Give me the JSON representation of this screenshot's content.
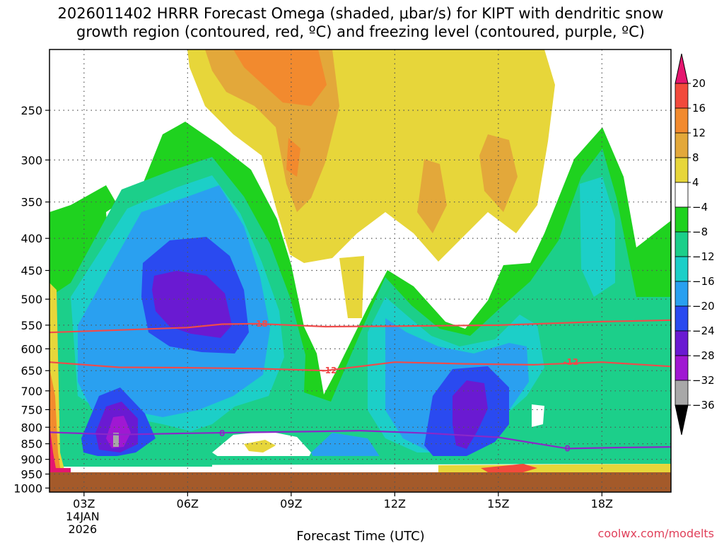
{
  "chart_data": {
    "type": "heatmap",
    "title_line1": "2026011402 HRRR Forecast Omega (shaded, μbar/s) for KIPT with dendritic snow",
    "title_line2": "growth region (contoured, red, ºC) and freezing level (contoured, purple, ºC)",
    "xlabel": "Forecast Time (UTC)",
    "credit": "coolwx.com/modelts",
    "y_axis": {
      "scale": "log-pressure",
      "range_hpa": [
        200,
        1000
      ],
      "ticks": [
        250,
        300,
        350,
        400,
        450,
        500,
        550,
        600,
        650,
        700,
        750,
        800,
        850,
        900,
        950,
        1000
      ],
      "tick_labels": [
        "250",
        "300",
        "350",
        "400",
        "450",
        "500",
        "550",
        "600",
        "650",
        "700",
        "750",
        "800",
        "850",
        "900",
        "950",
        "1000"
      ]
    },
    "x_axis": {
      "range_hours": [
        2,
        20
      ],
      "ticks": [
        {
          "hour": 3,
          "label": "03Z",
          "sub1": "14JAN",
          "sub2": "2026"
        },
        {
          "hour": 6,
          "label": "06Z",
          "sub1": "",
          "sub2": ""
        },
        {
          "hour": 9,
          "label": "09Z",
          "sub1": "",
          "sub2": ""
        },
        {
          "hour": 12,
          "label": "12Z",
          "sub1": "",
          "sub2": ""
        },
        {
          "hour": 15,
          "label": "15Z",
          "sub1": "",
          "sub2": ""
        },
        {
          "hour": 18,
          "label": "18Z",
          "sub1": "",
          "sub2": ""
        }
      ]
    },
    "colorbar": {
      "levels": [
        "20",
        "16",
        "12",
        "8",
        "4",
        "−4",
        "−8",
        "−12",
        "−16",
        "−20",
        "−24",
        "−28",
        "−32",
        "−36"
      ],
      "colors": [
        "#f24a3c",
        "#f28a2e",
        "#e3a83a",
        "#e7d63a",
        "#ffffff",
        "#1fd21f",
        "#1ccf8a",
        "#1ccfc8",
        "#2aa0f0",
        "#2a4af0",
        "#6a1ad2",
        "#a018d2",
        "#a8a8a8",
        "#000000"
      ],
      "top_arrow_color": "#e5166f",
      "bottom_arrow_color": "#000000"
    },
    "contours": [
      {
        "name": "-18C isotherm",
        "label": "-18",
        "color": "#ef4b4b",
        "points": [
          [
            2.0,
            565
          ],
          [
            4.0,
            560
          ],
          [
            6.0,
            555
          ],
          [
            7.0,
            548
          ],
          [
            8.0,
            547
          ],
          [
            10.0,
            553
          ],
          [
            12.0,
            552
          ],
          [
            15.0,
            550
          ],
          [
            18.0,
            543
          ],
          [
            20.0,
            540
          ]
        ],
        "label_at": [
          8.1,
          547
        ]
      },
      {
        "name": "-12C isotherm",
        "label": "-12",
        "color": "#ef4b4b",
        "points": [
          [
            2.0,
            630
          ],
          [
            4.0,
            642
          ],
          [
            6.0,
            643
          ],
          [
            8.0,
            645
          ],
          [
            10.0,
            650
          ],
          [
            12.0,
            630
          ],
          [
            14.0,
            634
          ],
          [
            16.0,
            636
          ],
          [
            18.0,
            630
          ],
          [
            20.0,
            640
          ]
        ],
        "label_at": [
          10.1,
          650
        ],
        "label2_at": [
          17.1,
          630
        ]
      },
      {
        "name": "0C freezing level",
        "label": "0",
        "color": "#8a28c8",
        "points": [
          [
            2.0,
            815
          ],
          [
            4.0,
            822
          ],
          [
            6.0,
            818
          ],
          [
            8.0,
            815
          ],
          [
            10.0,
            812
          ],
          [
            11.0,
            810
          ],
          [
            13.0,
            818
          ],
          [
            15.0,
            830
          ],
          [
            17.0,
            865
          ],
          [
            18.5,
            862
          ],
          [
            20.0,
            860
          ]
        ],
        "label_at": [
          7.0,
          818
        ],
        "label2_at": [
          17.0,
          865
        ]
      }
    ]
  }
}
